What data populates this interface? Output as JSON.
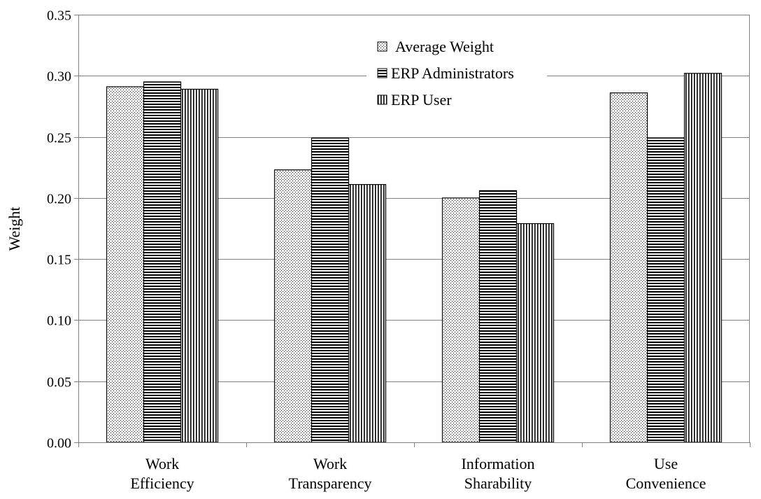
{
  "chart_data": {
    "type": "bar",
    "title": "",
    "xlabel": "",
    "ylabel": "Weight",
    "ylim": [
      0,
      0.35
    ],
    "yticks": [
      "0.00",
      "0.05",
      "0.10",
      "0.15",
      "0.20",
      "0.25",
      "0.30",
      "0.35"
    ],
    "grid": true,
    "legend_position": "top-center",
    "categories": [
      [
        "Work",
        "Efficiency"
      ],
      [
        "Work",
        "Transparency"
      ],
      [
        "Information",
        "Sharability"
      ],
      [
        "Use",
        "Convenience"
      ]
    ],
    "series": [
      {
        "name": "Average Weight",
        "pattern": "dots",
        "values": [
          0.291,
          0.223,
          0.2,
          0.286
        ]
      },
      {
        "name": "ERP Administrators",
        "pattern": "horizontal-lines",
        "values": [
          0.295,
          0.249,
          0.206,
          0.249
        ]
      },
      {
        "name": "ERP User",
        "pattern": "vertical-lines",
        "values": [
          0.289,
          0.211,
          0.179,
          0.302
        ]
      }
    ]
  }
}
